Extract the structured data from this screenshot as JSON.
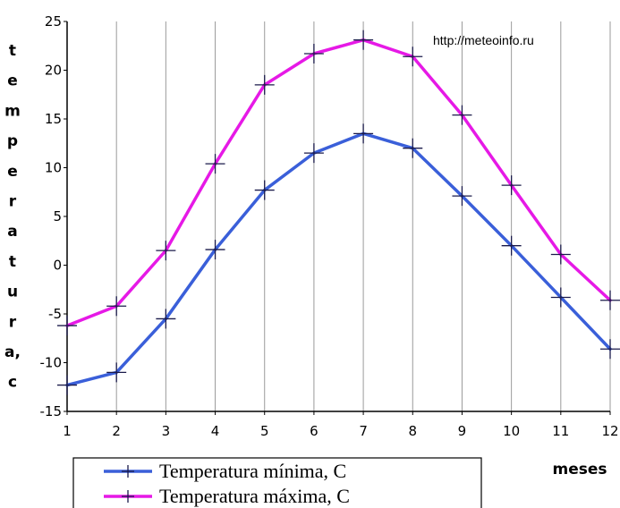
{
  "chart_data": {
    "type": "line",
    "source_text": "http://meteoinfo.ru",
    "ylabel": "temperatura,c",
    "xlabel": "meses",
    "x": [
      1,
      2,
      3,
      4,
      5,
      6,
      7,
      8,
      9,
      10,
      11,
      12
    ],
    "xlim": [
      1,
      12
    ],
    "ylim": [
      -15,
      25
    ],
    "yticks": [
      -15,
      -10,
      -5,
      0,
      5,
      10,
      15,
      20,
      25
    ],
    "grid": "vertical",
    "legend_position": "bottom-left",
    "series": [
      {
        "name": "Temperatura mínima, C",
        "color": "#3a5fd9",
        "values": [
          -12.3,
          -11.0,
          -5.5,
          1.6,
          7.7,
          11.5,
          13.5,
          12.0,
          7.1,
          2.0,
          -3.3,
          -8.6
        ]
      },
      {
        "name": "Temperatura máxima, C",
        "color": "#e619e6",
        "values": [
          -6.2,
          -4.2,
          1.5,
          10.4,
          18.5,
          21.7,
          23.1,
          21.4,
          15.4,
          8.2,
          1.1,
          -3.6
        ]
      }
    ]
  }
}
